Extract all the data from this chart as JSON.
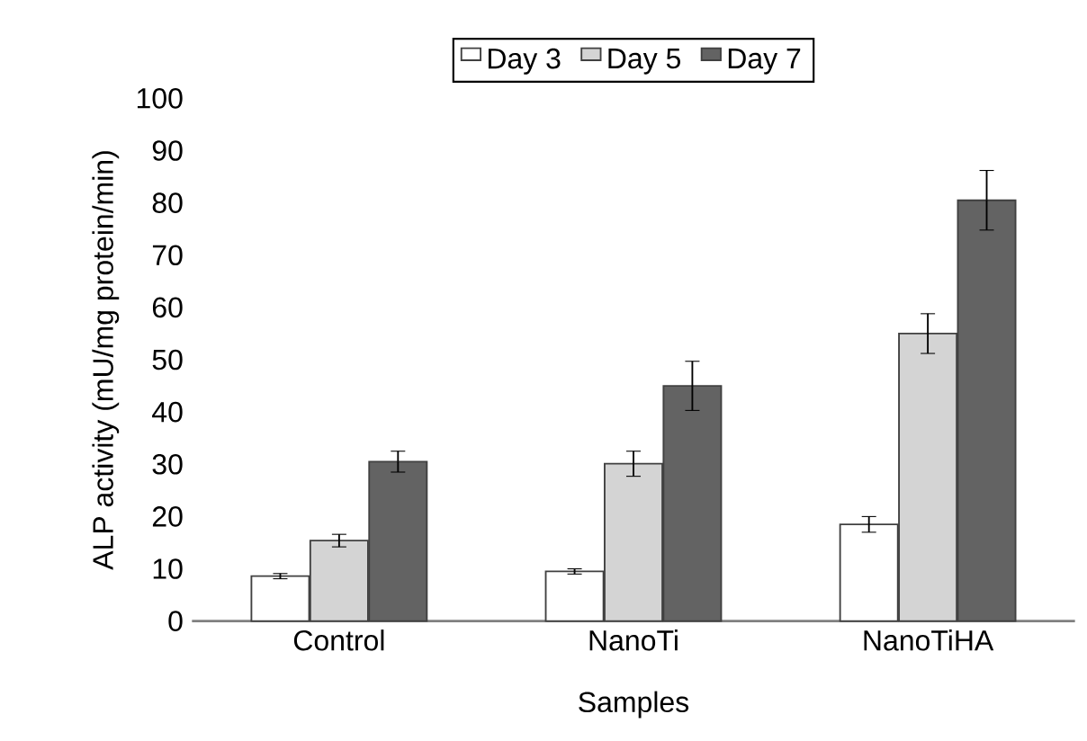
{
  "chart_data": {
    "type": "bar",
    "xlabel": "Samples",
    "ylabel": "ALP activity (mU/mg protein/min)",
    "categories": [
      "Control",
      "NanoTi",
      "NanoTiHA"
    ],
    "series": [
      {
        "name": "Day 3",
        "color": "#ffffff",
        "values": [
          8.6,
          9.5,
          18.5
        ],
        "errors": [
          0.5,
          0.5,
          1.5
        ]
      },
      {
        "name": "Day 5",
        "color": "#d4d4d4",
        "values": [
          15.4,
          30.1,
          55.0
        ],
        "errors": [
          1.2,
          2.4,
          3.8
        ]
      },
      {
        "name": "Day 7",
        "color": "#636363",
        "values": [
          30.5,
          45.0,
          80.5
        ],
        "errors": [
          2.0,
          4.7,
          5.7
        ]
      }
    ],
    "ylim": [
      0,
      100
    ],
    "yticks": [
      0,
      10,
      20,
      30,
      40,
      50,
      60,
      70,
      80,
      90,
      100
    ],
    "legend": "top",
    "grid": false
  }
}
